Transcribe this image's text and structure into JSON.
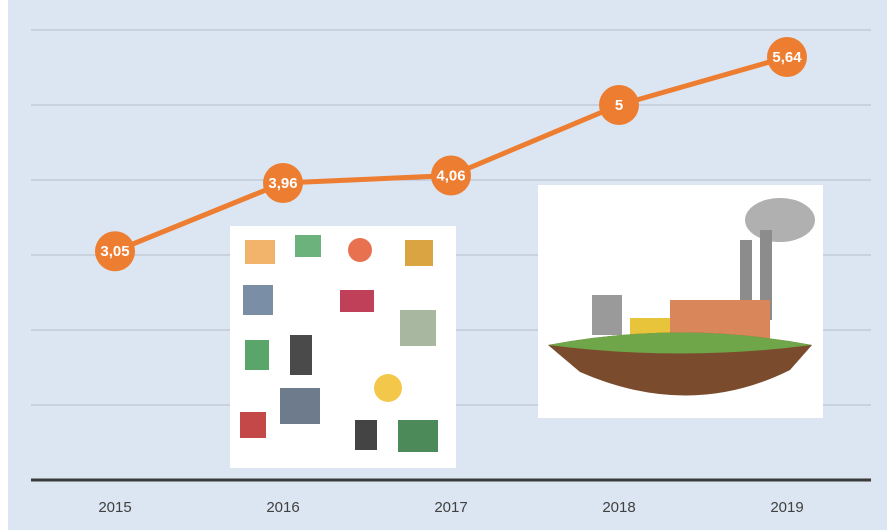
{
  "chart_data": {
    "type": "line",
    "categories": [
      "2015",
      "2016",
      "2017",
      "2018",
      "2019"
    ],
    "series": [
      {
        "color": "#ed7d31",
        "values": [
          3.05,
          3.96,
          4.06,
          5,
          5.64
        ],
        "value_labels": [
          "3,05",
          "3,96",
          "4,06",
          "5",
          "5,64"
        ]
      }
    ],
    "ylim": [
      0,
      6
    ],
    "yticks": [
      0,
      1,
      2,
      3,
      4,
      5,
      6
    ],
    "grid": true
  }
}
